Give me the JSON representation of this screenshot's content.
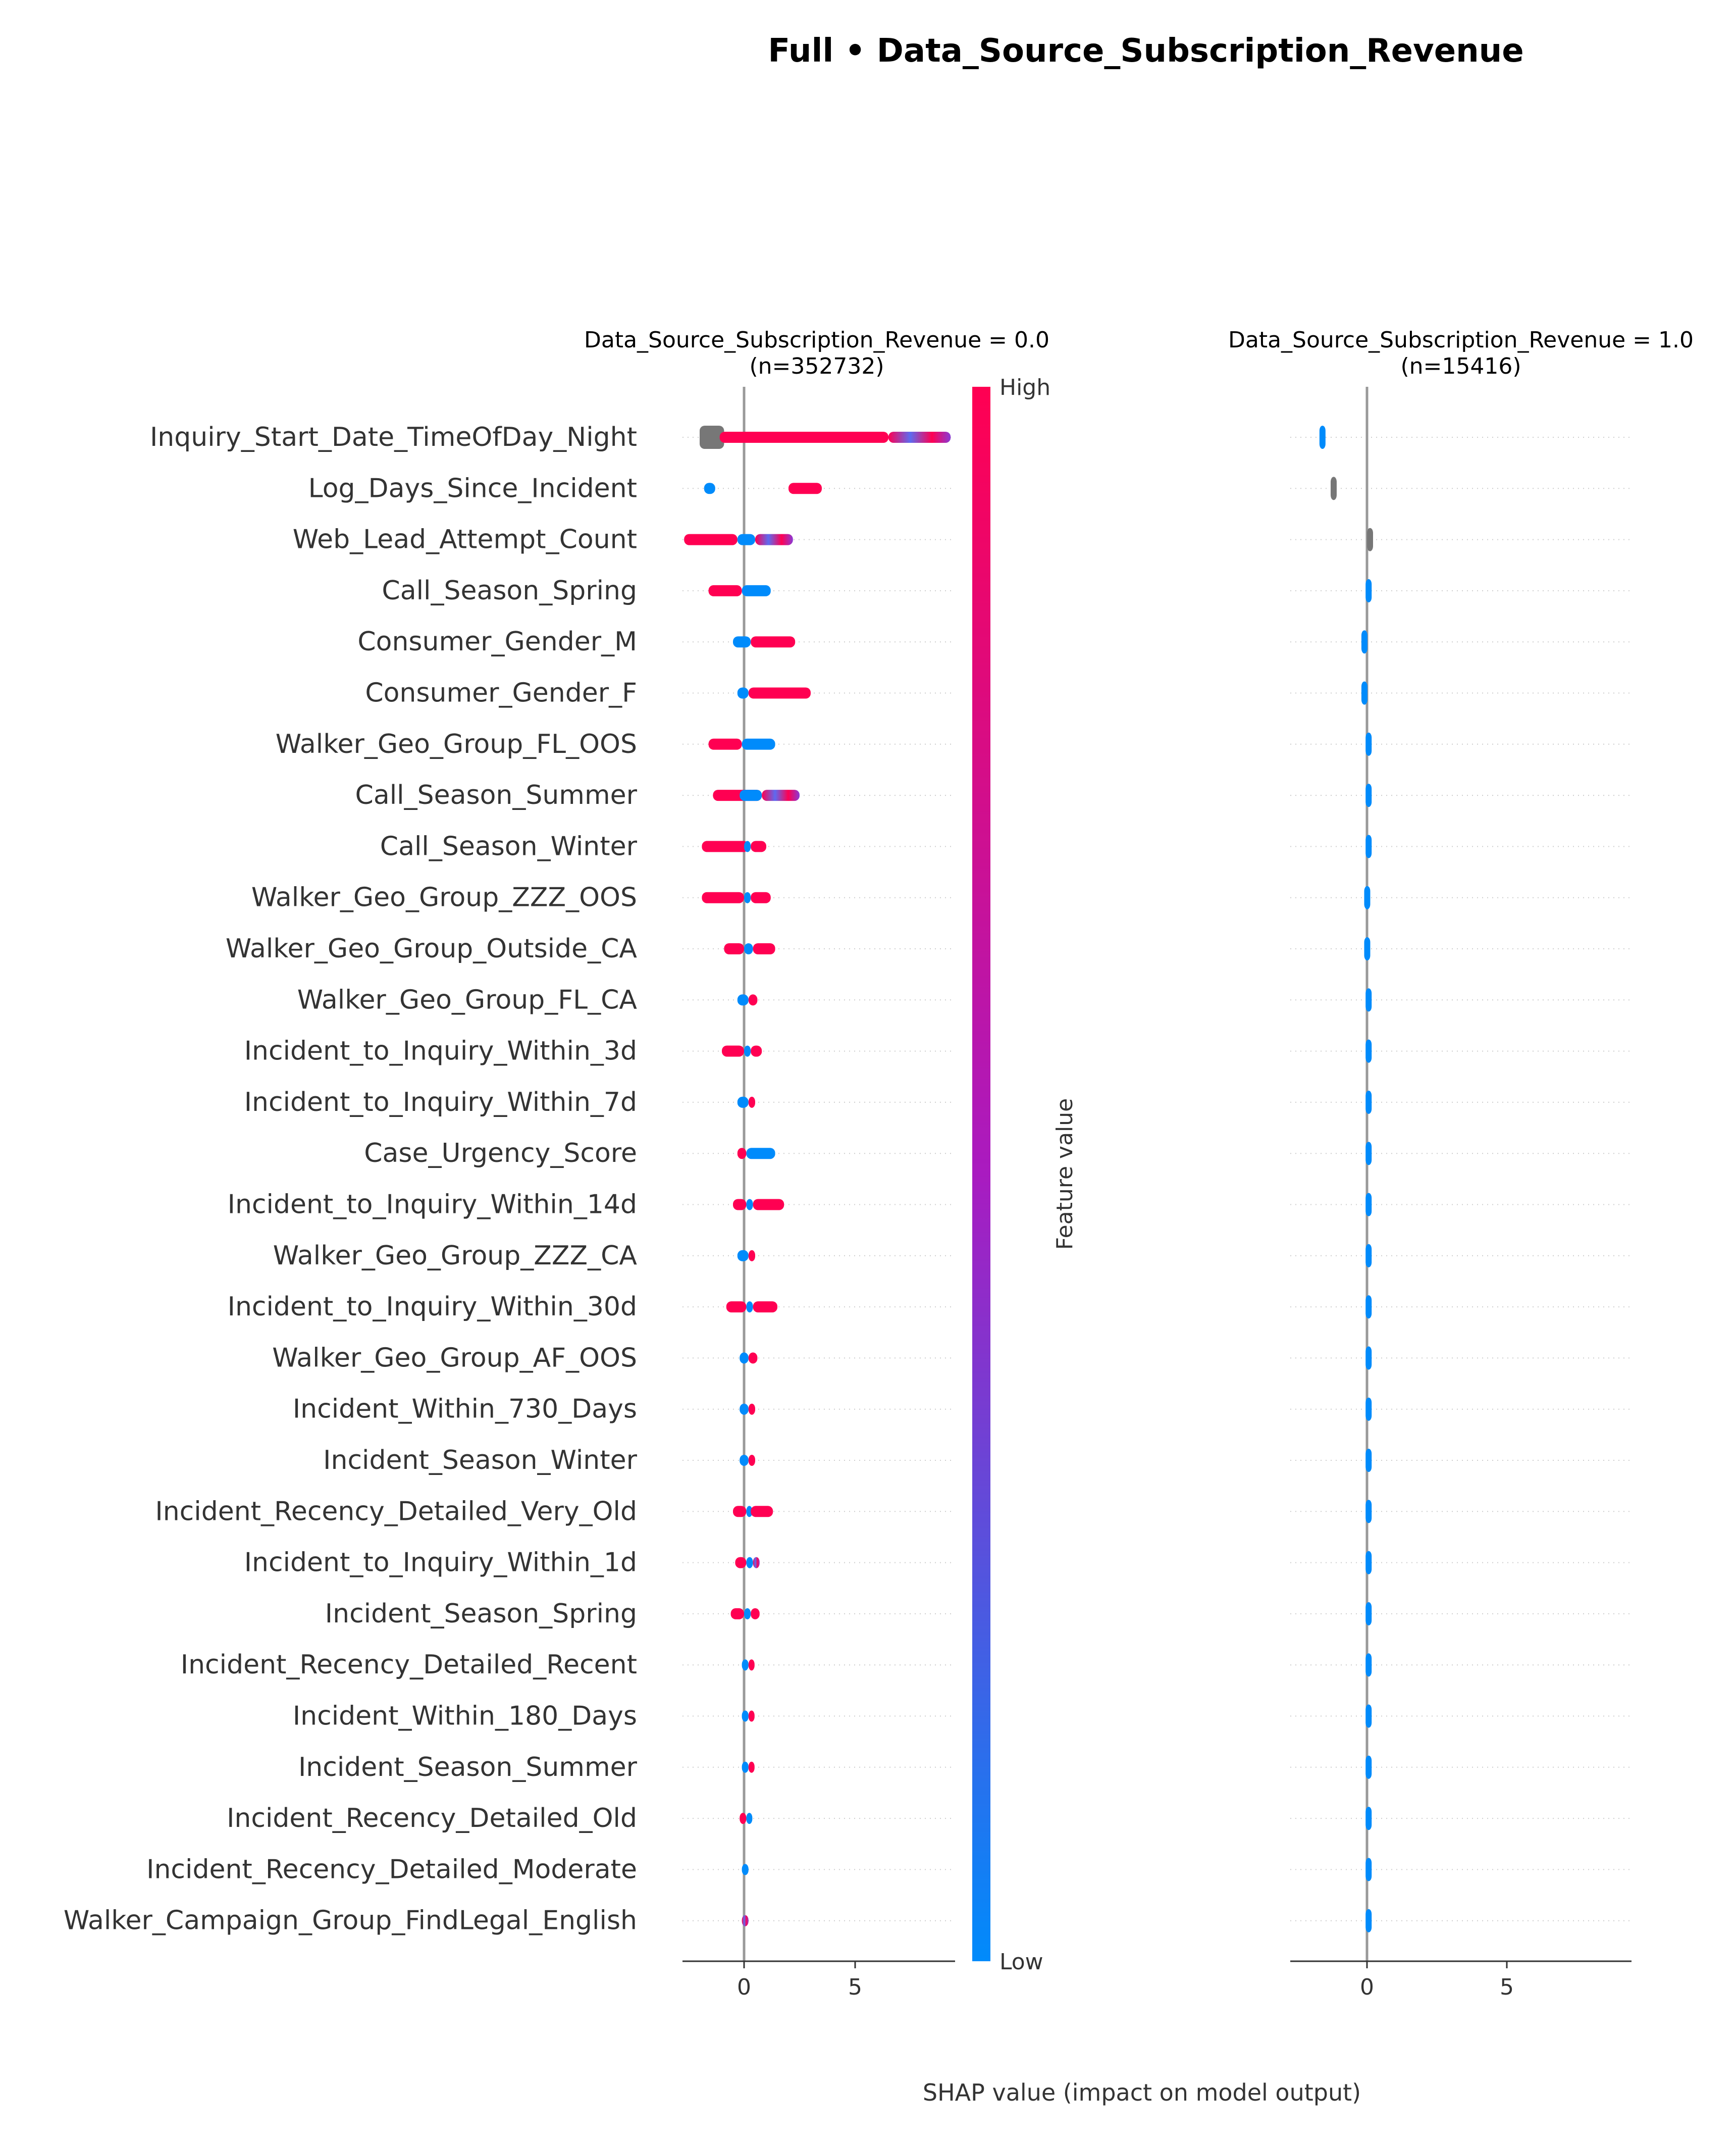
{
  "figure": {
    "title": "Full • Data_Source_Subscription_Revenue",
    "xlabel": "SHAP value (impact on model output)"
  },
  "colorbar": {
    "label": "Feature value",
    "high_label": "High",
    "low_label": "Low",
    "high_color": "#ff0052",
    "mid_color": "#a91bc0",
    "low_color": "#008bfb",
    "missing_color": "#777777"
  },
  "chart_data": {
    "type": "scatter",
    "subtype": "shap-beeswarm",
    "features": [
      "Inquiry_Start_Date_TimeOfDay_Night",
      "Log_Days_Since_Incident",
      "Web_Lead_Attempt_Count",
      "Call_Season_Spring",
      "Consumer_Gender_M",
      "Consumer_Gender_F",
      "Walker_Geo_Group_FL_OOS",
      "Call_Season_Summer",
      "Call_Season_Winter",
      "Walker_Geo_Group_ZZZ_OOS",
      "Walker_Geo_Group_Outside_CA",
      "Walker_Geo_Group_FL_CA",
      "Incident_to_Inquiry_Within_3d",
      "Incident_to_Inquiry_Within_7d",
      "Case_Urgency_Score",
      "Incident_to_Inquiry_Within_14d",
      "Walker_Geo_Group_ZZZ_CA",
      "Incident_to_Inquiry_Within_30d",
      "Walker_Geo_Group_AF_OOS",
      "Incident_Within_730_Days",
      "Incident_Season_Winter",
      "Incident_Recency_Detailed_Very_Old",
      "Incident_to_Inquiry_Within_1d",
      "Incident_Season_Spring",
      "Incident_Recency_Detailed_Recent",
      "Incident_Within_180_Days",
      "Incident_Season_Summer",
      "Incident_Recency_Detailed_Old",
      "Incident_Recency_Detailed_Moderate",
      "Walker_Campaign_Group_FindLegal_English"
    ],
    "xlim": [
      -2.7,
      9.3
    ],
    "xticks": [
      0,
      5
    ],
    "panels": [
      {
        "title": "Data_Source_Subscription_Revenue = 0.0",
        "subtitle": "(n=352732)",
        "rows": [
          {
            "segments": [
              {
                "x0": -2.0,
                "x1": -0.9,
                "c": "missing"
              },
              {
                "x0": -1.1,
                "x1": 6.5,
                "c": "high"
              },
              {
                "x0": 6.5,
                "x1": 9.3,
                "c": "mix"
              }
            ]
          },
          {
            "segments": [
              {
                "x0": -1.8,
                "x1": -1.3,
                "c": "low"
              },
              {
                "x0": 2.0,
                "x1": 3.5,
                "c": "high"
              }
            ]
          },
          {
            "segments": [
              {
                "x0": -2.7,
                "x1": -0.3,
                "c": "high"
              },
              {
                "x0": -0.3,
                "x1": 0.5,
                "c": "low"
              },
              {
                "x0": 0.5,
                "x1": 2.2,
                "c": "mix"
              }
            ]
          },
          {
            "segments": [
              {
                "x0": -1.6,
                "x1": -0.1,
                "c": "high"
              },
              {
                "x0": -0.1,
                "x1": 1.2,
                "c": "low"
              }
            ]
          },
          {
            "segments": [
              {
                "x0": -0.5,
                "x1": 0.3,
                "c": "low"
              },
              {
                "x0": 0.3,
                "x1": 2.3,
                "c": "high"
              }
            ]
          },
          {
            "segments": [
              {
                "x0": -0.3,
                "x1": 0.2,
                "c": "low"
              },
              {
                "x0": 0.2,
                "x1": 3.0,
                "c": "high"
              }
            ]
          },
          {
            "segments": [
              {
                "x0": -1.6,
                "x1": -0.1,
                "c": "high"
              },
              {
                "x0": -0.1,
                "x1": 1.4,
                "c": "low"
              }
            ]
          },
          {
            "segments": [
              {
                "x0": -1.4,
                "x1": 0.8,
                "c": "high"
              },
              {
                "x0": -0.2,
                "x1": 0.8,
                "c": "low"
              },
              {
                "x0": 0.8,
                "x1": 2.5,
                "c": "mix"
              }
            ]
          },
          {
            "segments": [
              {
                "x0": -1.9,
                "x1": 0.2,
                "c": "high"
              },
              {
                "x0": 0.0,
                "x1": 0.3,
                "c": "low"
              },
              {
                "x0": 0.3,
                "x1": 1.0,
                "c": "high"
              }
            ]
          },
          {
            "segments": [
              {
                "x0": -1.9,
                "x1": 0.0,
                "c": "high"
              },
              {
                "x0": 0.0,
                "x1": 0.3,
                "c": "low"
              },
              {
                "x0": 0.3,
                "x1": 1.2,
                "c": "high"
              }
            ]
          },
          {
            "segments": [
              {
                "x0": -0.9,
                "x1": 0.0,
                "c": "high"
              },
              {
                "x0": 0.0,
                "x1": 0.4,
                "c": "low"
              },
              {
                "x0": 0.4,
                "x1": 1.4,
                "c": "high"
              }
            ]
          },
          {
            "segments": [
              {
                "x0": -0.3,
                "x1": 0.2,
                "c": "low"
              },
              {
                "x0": 0.2,
                "x1": 0.6,
                "c": "high"
              }
            ]
          },
          {
            "segments": [
              {
                "x0": -1.0,
                "x1": 0.0,
                "c": "high"
              },
              {
                "x0": 0.0,
                "x1": 0.3,
                "c": "low"
              },
              {
                "x0": 0.3,
                "x1": 0.8,
                "c": "high"
              }
            ]
          },
          {
            "segments": [
              {
                "x0": -0.3,
                "x1": 0.2,
                "c": "low"
              },
              {
                "x0": 0.2,
                "x1": 0.5,
                "c": "high"
              }
            ]
          },
          {
            "segments": [
              {
                "x0": -0.3,
                "x1": 0.1,
                "c": "high"
              },
              {
                "x0": 0.1,
                "x1": 1.4,
                "c": "low"
              }
            ]
          },
          {
            "segments": [
              {
                "x0": -0.5,
                "x1": 0.1,
                "c": "high"
              },
              {
                "x0": 0.1,
                "x1": 0.4,
                "c": "low"
              },
              {
                "x0": 0.4,
                "x1": 1.8,
                "c": "high"
              }
            ]
          },
          {
            "segments": [
              {
                "x0": -0.3,
                "x1": 0.2,
                "c": "low"
              },
              {
                "x0": 0.2,
                "x1": 0.5,
                "c": "high"
              }
            ]
          },
          {
            "segments": [
              {
                "x0": -0.8,
                "x1": 0.1,
                "c": "high"
              },
              {
                "x0": 0.1,
                "x1": 0.4,
                "c": "low"
              },
              {
                "x0": 0.4,
                "x1": 1.5,
                "c": "high"
              }
            ]
          },
          {
            "segments": [
              {
                "x0": -0.2,
                "x1": 0.2,
                "c": "low"
              },
              {
                "x0": 0.2,
                "x1": 0.6,
                "c": "high"
              }
            ]
          },
          {
            "segments": [
              {
                "x0": -0.2,
                "x1": 0.2,
                "c": "low"
              },
              {
                "x0": 0.2,
                "x1": 0.5,
                "c": "high"
              }
            ]
          },
          {
            "segments": [
              {
                "x0": -0.2,
                "x1": 0.2,
                "c": "low"
              },
              {
                "x0": 0.2,
                "x1": 0.5,
                "c": "high"
              }
            ]
          },
          {
            "segments": [
              {
                "x0": -0.5,
                "x1": 0.1,
                "c": "high"
              },
              {
                "x0": 0.1,
                "x1": 0.3,
                "c": "low"
              },
              {
                "x0": 0.3,
                "x1": 1.3,
                "c": "high"
              }
            ]
          },
          {
            "segments": [
              {
                "x0": -0.4,
                "x1": 0.1,
                "c": "high"
              },
              {
                "x0": 0.1,
                "x1": 0.4,
                "c": "low"
              },
              {
                "x0": 0.4,
                "x1": 0.7,
                "c": "mix"
              }
            ]
          },
          {
            "segments": [
              {
                "x0": -0.6,
                "x1": 0.0,
                "c": "high"
              },
              {
                "x0": 0.0,
                "x1": 0.3,
                "c": "low"
              },
              {
                "x0": 0.3,
                "x1": 0.7,
                "c": "high"
              }
            ]
          },
          {
            "segments": [
              {
                "x0": -0.1,
                "x1": 0.2,
                "c": "low"
              },
              {
                "x0": 0.2,
                "x1": 0.3,
                "c": "high"
              }
            ]
          },
          {
            "segments": [
              {
                "x0": -0.1,
                "x1": 0.2,
                "c": "low"
              },
              {
                "x0": 0.2,
                "x1": 0.3,
                "c": "high"
              }
            ]
          },
          {
            "segments": [
              {
                "x0": -0.1,
                "x1": 0.2,
                "c": "low"
              },
              {
                "x0": 0.2,
                "x1": 0.3,
                "c": "high"
              }
            ]
          },
          {
            "segments": [
              {
                "x0": -0.2,
                "x1": 0.1,
                "c": "high"
              },
              {
                "x0": 0.1,
                "x1": 0.3,
                "c": "low"
              }
            ]
          },
          {
            "segments": [
              {
                "x0": -0.1,
                "x1": 0.2,
                "c": "low"
              }
            ]
          },
          {
            "segments": [
              {
                "x0": -0.1,
                "x1": 0.2,
                "c": "mix"
              }
            ]
          }
        ]
      },
      {
        "title": "Data_Source_Subscription_Revenue = 1.0",
        "subtitle": "(n=15416)",
        "rows": [
          {
            "segments": [
              {
                "x0": -1.7,
                "x1": -1.5,
                "c": "low"
              }
            ]
          },
          {
            "segments": [
              {
                "x0": -1.3,
                "x1": -1.1,
                "c": "missing"
              }
            ]
          },
          {
            "segments": [
              {
                "x0": 0.0,
                "x1": 0.2,
                "c": "missing"
              }
            ]
          },
          {
            "segments": [
              {
                "x0": -0.05,
                "x1": 0.15,
                "c": "low"
              }
            ]
          },
          {
            "segments": [
              {
                "x0": -0.2,
                "x1": 0.0,
                "c": "low"
              }
            ]
          },
          {
            "segments": [
              {
                "x0": -0.2,
                "x1": 0.0,
                "c": "low"
              }
            ]
          },
          {
            "segments": [
              {
                "x0": -0.05,
                "x1": 0.15,
                "c": "low"
              }
            ]
          },
          {
            "segments": [
              {
                "x0": -0.05,
                "x1": 0.15,
                "c": "low"
              }
            ]
          },
          {
            "segments": [
              {
                "x0": -0.05,
                "x1": 0.15,
                "c": "low"
              }
            ]
          },
          {
            "segments": [
              {
                "x0": -0.1,
                "x1": 0.1,
                "c": "low"
              }
            ]
          },
          {
            "segments": [
              {
                "x0": -0.1,
                "x1": 0.1,
                "c": "low"
              }
            ]
          },
          {
            "segments": [
              {
                "x0": -0.05,
                "x1": 0.15,
                "c": "low"
              }
            ]
          },
          {
            "segments": [
              {
                "x0": -0.05,
                "x1": 0.15,
                "c": "low"
              }
            ]
          },
          {
            "segments": [
              {
                "x0": -0.05,
                "x1": 0.15,
                "c": "low"
              }
            ]
          },
          {
            "segments": [
              {
                "x0": -0.05,
                "x1": 0.15,
                "c": "low"
              }
            ]
          },
          {
            "segments": [
              {
                "x0": -0.05,
                "x1": 0.15,
                "c": "low"
              }
            ]
          },
          {
            "segments": [
              {
                "x0": -0.05,
                "x1": 0.15,
                "c": "low"
              }
            ]
          },
          {
            "segments": [
              {
                "x0": -0.05,
                "x1": 0.15,
                "c": "low"
              }
            ]
          },
          {
            "segments": [
              {
                "x0": -0.05,
                "x1": 0.15,
                "c": "low"
              }
            ]
          },
          {
            "segments": [
              {
                "x0": -0.05,
                "x1": 0.15,
                "c": "low"
              }
            ]
          },
          {
            "segments": [
              {
                "x0": -0.05,
                "x1": 0.15,
                "c": "low"
              }
            ]
          },
          {
            "segments": [
              {
                "x0": -0.05,
                "x1": 0.15,
                "c": "low"
              }
            ]
          },
          {
            "segments": [
              {
                "x0": -0.05,
                "x1": 0.15,
                "c": "low"
              }
            ]
          },
          {
            "segments": [
              {
                "x0": -0.05,
                "x1": 0.15,
                "c": "low"
              }
            ]
          },
          {
            "segments": [
              {
                "x0": -0.05,
                "x1": 0.15,
                "c": "low"
              }
            ]
          },
          {
            "segments": [
              {
                "x0": -0.05,
                "x1": 0.15,
                "c": "low"
              }
            ]
          },
          {
            "segments": [
              {
                "x0": -0.05,
                "x1": 0.15,
                "c": "low"
              }
            ]
          },
          {
            "segments": [
              {
                "x0": -0.05,
                "x1": 0.15,
                "c": "low"
              }
            ]
          },
          {
            "segments": [
              {
                "x0": -0.05,
                "x1": 0.15,
                "c": "low"
              }
            ]
          },
          {
            "segments": [
              {
                "x0": -0.05,
                "x1": 0.15,
                "c": "low"
              }
            ]
          }
        ]
      }
    ]
  }
}
